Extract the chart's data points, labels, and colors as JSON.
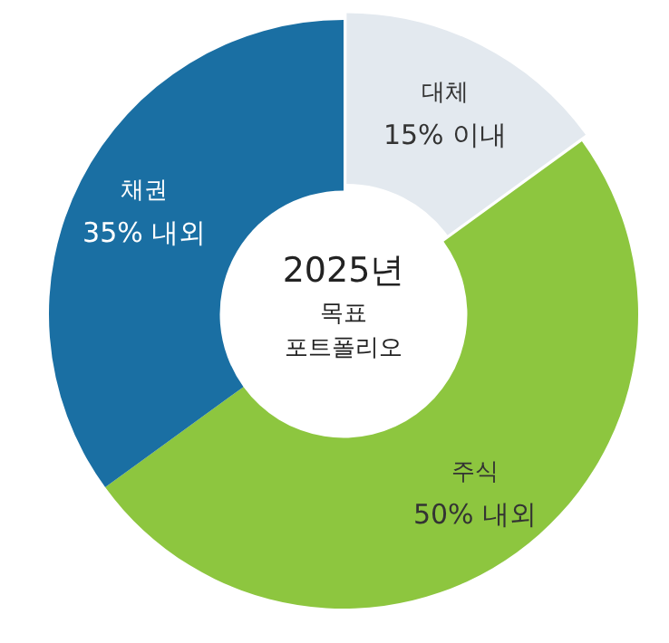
{
  "chart_data": {
    "type": "donut",
    "title": "2025년 목표 포트폴리오",
    "categories": [
      "대체",
      "주식",
      "채권"
    ],
    "values": [
      15,
      50,
      35
    ],
    "colors": [
      "#e3e9ef",
      "#8dc63f",
      "#1a6fa3"
    ],
    "value_labels": [
      "15% 이내",
      "50% 내외",
      "35% 내외"
    ],
    "legend": false
  }
}
